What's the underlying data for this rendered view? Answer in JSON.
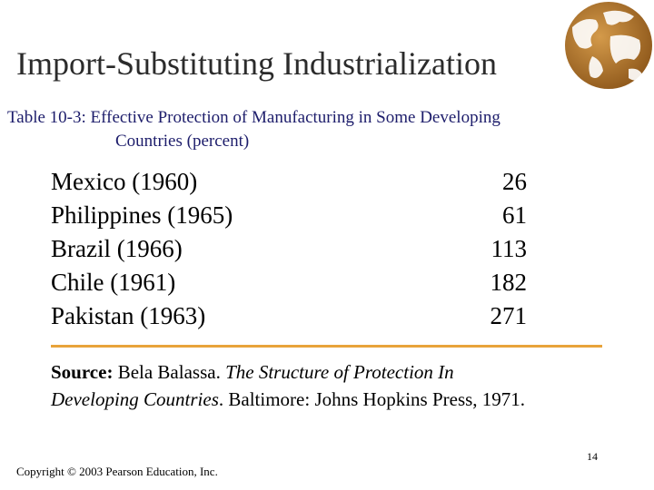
{
  "slide": {
    "title": "Import-Substituting Industrialization",
    "caption_label": "Table 10-3",
    "caption_sep": ": ",
    "caption_line1": "Effective Protection of Manufacturing in Some Developing",
    "caption_line2": "Countries (percent)"
  },
  "table": {
    "rows": [
      {
        "country": "Mexico (1960)",
        "value": "26"
      },
      {
        "country": "Philippines (1965)",
        "value": "61"
      },
      {
        "country": "Brazil (1966)",
        "value": "113"
      },
      {
        "country": "Chile (1961)",
        "value": "182"
      },
      {
        "country": "Pakistan (1963)",
        "value": "271"
      }
    ]
  },
  "source": {
    "label": "Source:",
    "author": "Bela Balassa.",
    "title_part1": "The Structure of Protection In",
    "title_part2": "Developing Countries",
    "publisher": ". Baltimore: Johns Hopkins Press, 1971."
  },
  "footer": {
    "page_number": "14",
    "copyright": "Copyright © 2003 Pearson Education, Inc."
  },
  "colors": {
    "rule": "#e8a33a",
    "globe": "#a8702a",
    "caption": "#1d1d6b"
  },
  "icons": {
    "corner_graphic": "globe-icon"
  }
}
